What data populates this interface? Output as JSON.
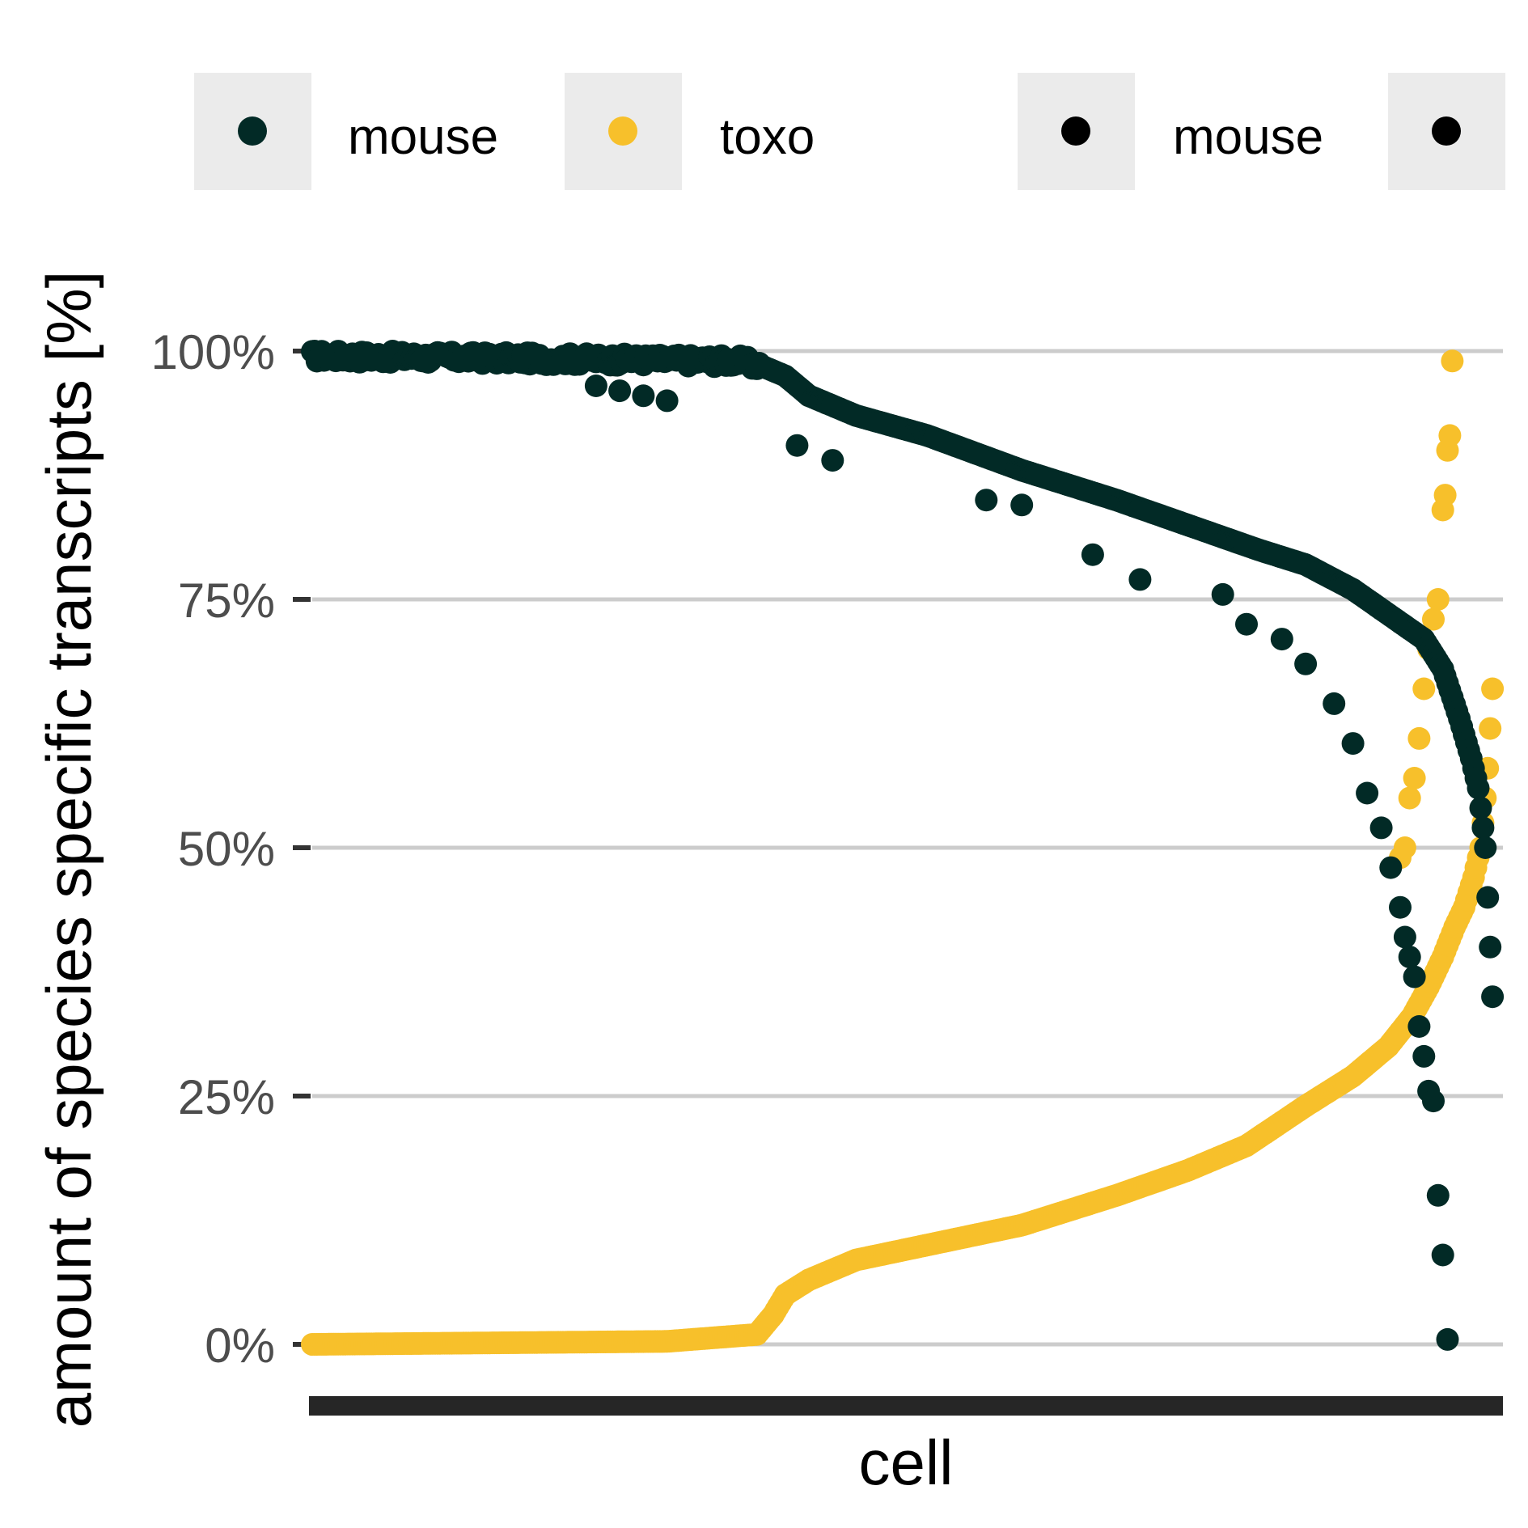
{
  "chart_data": {
    "type": "scatter",
    "title": "",
    "xlabel": "cell",
    "ylabel": "amount of species specific transcripts [%]",
    "ylim": [
      -0.05,
      1.1
    ],
    "y_ticks": [
      0,
      0.25,
      0.5,
      0.75,
      1.0
    ],
    "y_tick_labels": [
      "0%",
      "25%",
      "50%",
      "75%",
      "100%"
    ],
    "grid": "horizontal major only",
    "x_tick_labels_shown": false,
    "legend": {
      "position": "top",
      "entries": [
        {
          "label": "mouse",
          "color": "#022A26"
        },
        {
          "label": "toxo",
          "color": "#F7C02B"
        },
        {
          "label": "mouse",
          "color": "#000000"
        },
        {
          "label": "",
          "color": "#000000"
        }
      ]
    },
    "n_cells": 500,
    "series": [
      {
        "name": "mouse",
        "color": "#022A26",
        "curve_points": [
          [
            0,
            0.995
          ],
          [
            180,
            0.99
          ],
          [
            190,
            0.985
          ],
          [
            200,
            0.975
          ],
          [
            210,
            0.955
          ],
          [
            230,
            0.935
          ],
          [
            260,
            0.915
          ],
          [
            300,
            0.88
          ],
          [
            340,
            0.85
          ],
          [
            370,
            0.825
          ],
          [
            400,
            0.8
          ],
          [
            420,
            0.785
          ],
          [
            440,
            0.76
          ],
          [
            455,
            0.735
          ],
          [
            470,
            0.71
          ],
          [
            478,
            0.68
          ],
          [
            485,
            0.63
          ],
          [
            490,
            0.59
          ],
          [
            493,
            0.56
          ],
          [
            496,
            0.5
          ],
          [
            497,
            0.45
          ],
          [
            498,
            0.4
          ],
          [
            499,
            0.35
          ],
          [
            500,
            0.3
          ]
        ],
        "outliers": [
          [
            120,
            0.965
          ],
          [
            130,
            0.96
          ],
          [
            140,
            0.955
          ],
          [
            150,
            0.95
          ],
          [
            205,
            0.905
          ],
          [
            220,
            0.89
          ],
          [
            285,
            0.85
          ],
          [
            300,
            0.845
          ],
          [
            330,
            0.795
          ],
          [
            350,
            0.77
          ],
          [
            385,
            0.755
          ],
          [
            395,
            0.725
          ],
          [
            410,
            0.71
          ],
          [
            420,
            0.685
          ],
          [
            432,
            0.645
          ],
          [
            440,
            0.605
          ],
          [
            446,
            0.555
          ],
          [
            452,
            0.52
          ],
          [
            456,
            0.48
          ],
          [
            460,
            0.44
          ],
          [
            462,
            0.41
          ],
          [
            464,
            0.39
          ],
          [
            466,
            0.37
          ],
          [
            468,
            0.32
          ],
          [
            470,
            0.29
          ],
          [
            472,
            0.255
          ],
          [
            474,
            0.245
          ],
          [
            476,
            0.15
          ],
          [
            478,
            0.09
          ],
          [
            480,
            0.005
          ]
        ]
      },
      {
        "name": "toxo",
        "color": "#F7C02B",
        "curve_points": [
          [
            0,
            0.0
          ],
          [
            150,
            0.003
          ],
          [
            188,
            0.01
          ],
          [
            195,
            0.03
          ],
          [
            200,
            0.05
          ],
          [
            210,
            0.065
          ],
          [
            230,
            0.085
          ],
          [
            260,
            0.1
          ],
          [
            300,
            0.12
          ],
          [
            340,
            0.15
          ],
          [
            370,
            0.175
          ],
          [
            395,
            0.2
          ],
          [
            420,
            0.24
          ],
          [
            440,
            0.27
          ],
          [
            455,
            0.3
          ],
          [
            465,
            0.33
          ],
          [
            472,
            0.36
          ],
          [
            478,
            0.39
          ],
          [
            483,
            0.42
          ],
          [
            487,
            0.44
          ],
          [
            491,
            0.47
          ],
          [
            494,
            0.5
          ],
          [
            496,
            0.55
          ],
          [
            497,
            0.58
          ],
          [
            498,
            0.62
          ],
          [
            499,
            0.66
          ],
          [
            500,
            0.7
          ]
        ],
        "outliers": [
          [
            460,
            0.49
          ],
          [
            462,
            0.5
          ],
          [
            464,
            0.55
          ],
          [
            466,
            0.57
          ],
          [
            468,
            0.61
          ],
          [
            470,
            0.66
          ],
          [
            472,
            0.7
          ],
          [
            474,
            0.73
          ],
          [
            476,
            0.75
          ],
          [
            478,
            0.84
          ],
          [
            479,
            0.855
          ],
          [
            480,
            0.9
          ],
          [
            481,
            0.915
          ],
          [
            482,
            0.99
          ]
        ]
      }
    ]
  }
}
